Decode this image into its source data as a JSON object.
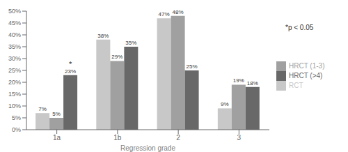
{
  "chart_data": {
    "type": "bar",
    "categories": [
      "1a",
      "1b",
      "2",
      "3"
    ],
    "series": [
      {
        "name": "RCT",
        "color": "#c8c8c8",
        "values": [
          7,
          38,
          47,
          9
        ],
        "value_labels": [
          "7%",
          "38%",
          "47%",
          "9%"
        ]
      },
      {
        "name": "HRCT (1-3)",
        "color": "#a0a0a0",
        "values": [
          5,
          29,
          48,
          19
        ],
        "value_labels": [
          "5%",
          "29%",
          "48%",
          "19%"
        ]
      },
      {
        "name": "HRCT (>4)",
        "color": "#686868",
        "values": [
          23,
          35,
          25,
          18
        ],
        "value_labels": [
          "23%",
          "35%",
          "25%",
          "18%"
        ]
      }
    ],
    "xlabel": "Regression grade",
    "ylim": [
      0,
      50
    ],
    "yticks": [
      {
        "value": 0,
        "label": "0%"
      },
      {
        "value": 5,
        "label": "5%"
      },
      {
        "value": 10,
        "label": "10%"
      },
      {
        "value": 15,
        "label": "15%"
      },
      {
        "value": 20,
        "label": "20%"
      },
      {
        "value": 25,
        "label": "25%"
      },
      {
        "value": 30,
        "label": "30%"
      },
      {
        "value": 35,
        "label": "35%"
      },
      {
        "value": 40,
        "label": "40%"
      },
      {
        "value": 45,
        "label": "45%"
      },
      {
        "value": 50,
        "label": "50%"
      }
    ],
    "data_labels": true,
    "legend": "right",
    "annotations": [
      {
        "text": "*",
        "category": "1a",
        "series": "HRCT (>4)"
      },
      {
        "text": "*p < 0.05"
      }
    ]
  }
}
